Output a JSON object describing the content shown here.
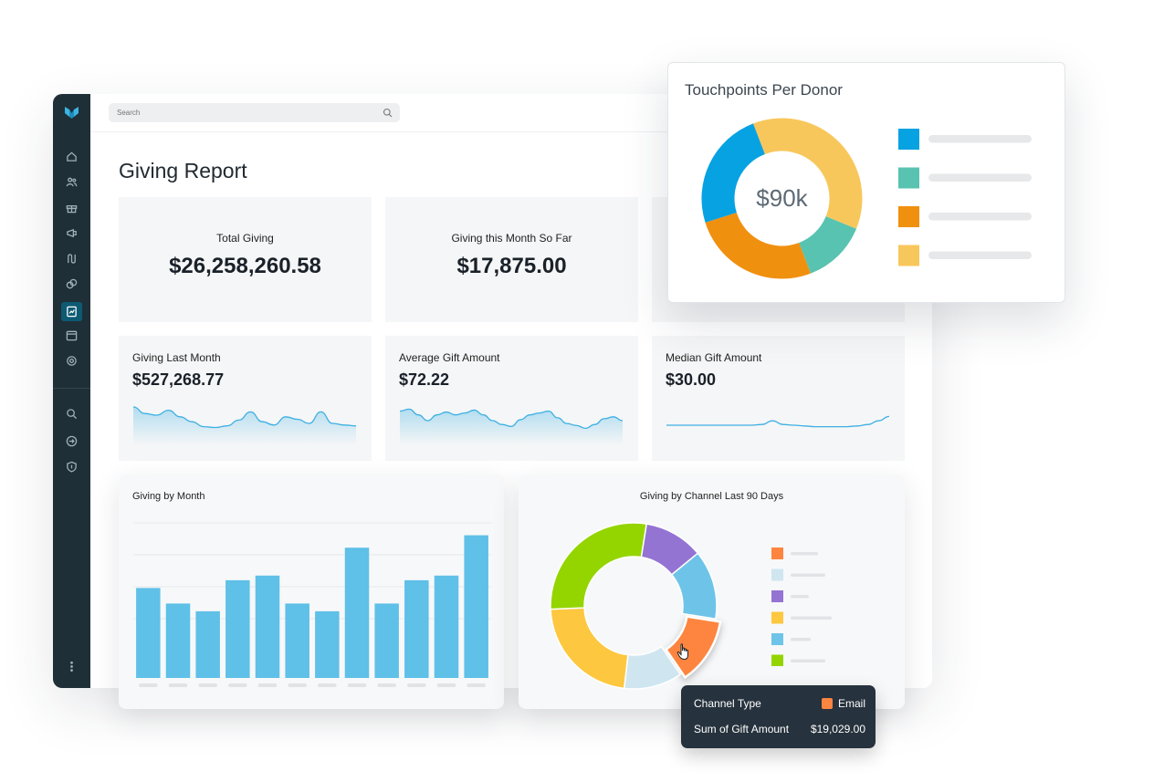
{
  "search": {
    "placeholder": "Search"
  },
  "page": {
    "title": "Giving Report"
  },
  "kpis": [
    {
      "label": "Total Giving",
      "value": "$26,258,260.58"
    },
    {
      "label": "Giving this Month So Far",
      "value": "$17,875.00"
    }
  ],
  "metrics": [
    {
      "label": "Giving Last Month",
      "value": "$527,268.77"
    },
    {
      "label": "Average Gift Amount",
      "value": "$72.22"
    },
    {
      "label": "Median Gift Amount",
      "value": "$30.00"
    }
  ],
  "sidebar_icons": [
    "home-icon",
    "people-icon",
    "gift-icon",
    "megaphone-icon",
    "route-icon",
    "tags-icon",
    "report-icon",
    "calendar-icon",
    "settings-icon",
    "search-icon",
    "sign-in-icon",
    "shield-icon",
    "more-icon"
  ],
  "colors": {
    "accent": "#0e5a73",
    "bar": "#5fc0e8",
    "sidebar": "#1f2f37"
  },
  "touchpoints": {
    "title": "Touchpoints Per Donor",
    "center_label": "$90k"
  },
  "tooltip": {
    "row1_key": "Channel Type",
    "row1_value": "Email",
    "row2_key": "Sum of Gift Amount",
    "row2_value": "$19,029.00"
  },
  "chart_data": [
    {
      "type": "line",
      "title": "Giving Last Month",
      "y": [
        40,
        32,
        30,
        36,
        28,
        22,
        16,
        15,
        17,
        24,
        34,
        22,
        18,
        28,
        25,
        20,
        34,
        20,
        18,
        17
      ]
    },
    {
      "type": "line",
      "title": "Average Gift Amount",
      "y": [
        30,
        32,
        26,
        20,
        26,
        29,
        26,
        28,
        31,
        26,
        20,
        16,
        14,
        21,
        26,
        28,
        30,
        23,
        17,
        15,
        12,
        16,
        22,
        24,
        20
      ]
    },
    {
      "type": "line",
      "title": "Median Gift Amount",
      "y": [
        20,
        20,
        20,
        20,
        20,
        20,
        20,
        20,
        20,
        21,
        26,
        21,
        20,
        19,
        18,
        18,
        18,
        18,
        19,
        21,
        26,
        32
      ]
    },
    {
      "type": "bar",
      "title": "Giving by Month",
      "categories": [
        "",
        "",
        "",
        "",
        "",
        "",
        "",
        "",
        "",
        "",
        "",
        ""
      ],
      "values": [
        58,
        48,
        43,
        63,
        66,
        48,
        43,
        84,
        48,
        63,
        66,
        92
      ],
      "ylim": [
        0,
        100
      ]
    },
    {
      "type": "pie",
      "title": "Giving by Channel Last 90 Days",
      "slices": [
        {
          "value": 11.2,
          "color": "#fd8540"
        },
        {
          "value": 9.8,
          "color": "#cfe6f1"
        },
        {
          "value": 19.5,
          "color": "#fdc73f"
        },
        {
          "value": 24.3,
          "color": "#94d500"
        },
        {
          "value": 10.0,
          "color": "#9474d3"
        },
        {
          "value": 11.6,
          "color": "#6ec4e8"
        }
      ],
      "legend_colors": [
        "#fd8540",
        "#cfe6f1",
        "#9474d3",
        "#fdc73f",
        "#6ec4e8",
        "#94d500"
      ]
    },
    {
      "type": "pie",
      "title": "Touchpoints Per Donor",
      "slices": [
        {
          "value": 37,
          "color": "#f8c75b"
        },
        {
          "value": 13,
          "color": "#58c3b0"
        },
        {
          "value": 26,
          "color": "#f0900f"
        },
        {
          "value": 24,
          "color": "#07a2e2"
        }
      ],
      "legend_colors": [
        "#07a2e2",
        "#58c3b0",
        "#f0900f",
        "#f8c75b"
      ]
    }
  ]
}
